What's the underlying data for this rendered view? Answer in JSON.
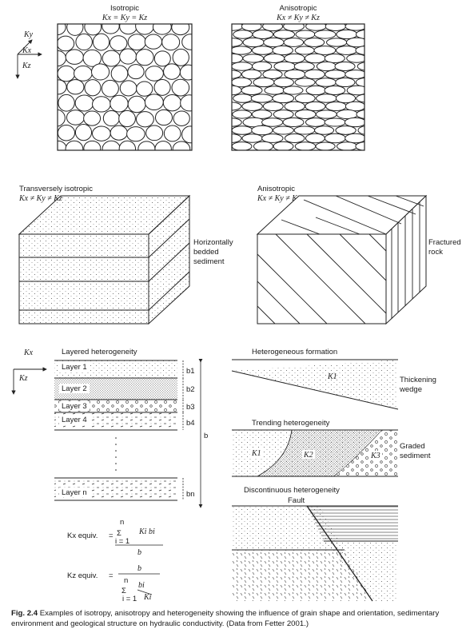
{
  "panels": {
    "isotropic": {
      "title": "Isotropic",
      "equation": "Kx = Ky = Kz"
    },
    "anisotropic_top": {
      "title": "Anisotropic",
      "equation": "Kx ≠ Ky ≠ Kz"
    },
    "axes_top": {
      "ky": "Ky",
      "kx": "Kx",
      "kz": "Kz"
    },
    "transversely": {
      "title": "Transversely isotropic",
      "equation": "Kx ≠ Ky ≠ Kz",
      "side_label": [
        "Horizontally",
        "bedded",
        "sediment"
      ]
    },
    "anisotropic_block": {
      "title": "Anisotropic",
      "equation": "Kx ≠ Ky ≠ Kz",
      "side_label": [
        "Fractured",
        "rock"
      ]
    },
    "layered": {
      "kx": "Kx",
      "kz": "Kz",
      "title": "Layered heterogeneity",
      "layers": [
        "Layer 1",
        "Layer 2",
        "Layer 3",
        "Layer 4",
        "Layer n"
      ],
      "thickness_labels": [
        "b1",
        "b2",
        "b3",
        "b4",
        "bn"
      ],
      "total_label": "b",
      "kx_equiv_label": "Kx equiv.",
      "kz_equiv_label": "Kz equiv.",
      "sum_top": "n",
      "sum_bottom": "i = 1",
      "kx_numerator": "Ki bi",
      "kx_denominator": "b",
      "kz_numerator": "b",
      "kz_frac_num": "bi",
      "kz_frac_den": "Ki"
    },
    "heterogeneous_formation": {
      "title": "Heterogeneous formation",
      "k_label": "K1",
      "side_label": [
        "Thickening",
        "wedge"
      ]
    },
    "trending": {
      "title": "Trending heterogeneity",
      "k1": "K1",
      "k2": "K2",
      "k3": "K3",
      "side_label": [
        "Graded",
        "sediment"
      ]
    },
    "discontinuous": {
      "title": "Discontinuous heterogeneity",
      "fault_label": "Fault"
    }
  },
  "caption": {
    "label": "Fig. 2.4",
    "text": "Examples of isotropy, anisotropy and heterogeneity showing the influence of grain shape and orientation, sedimentary environment and geological structure on hydraulic conductivity. (Data from Fetter 2001.)"
  }
}
